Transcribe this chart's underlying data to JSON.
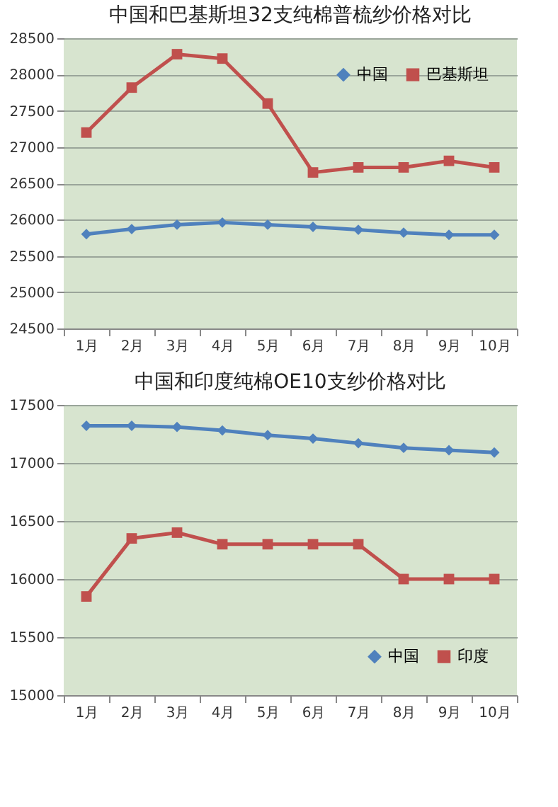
{
  "chart_data": [
    {
      "type": "line",
      "title": "中国和巴基斯坦32支纯棉普梳纱价格对比",
      "categories": [
        "1月",
        "2月",
        "3月",
        "4月",
        "5月",
        "6月",
        "7月",
        "8月",
        "9月",
        "10月"
      ],
      "ylim": [
        24500,
        28500
      ],
      "yticks": [
        24500,
        25000,
        25500,
        26000,
        26500,
        27000,
        27500,
        28000,
        28500
      ],
      "grid": "y",
      "legend": "top right",
      "series": [
        {
          "name": "中国",
          "color": "#4f81bd",
          "marker": "diamond",
          "values": [
            25800,
            25870,
            25930,
            25960,
            25930,
            25900,
            25860,
            25820,
            25790,
            25790
          ]
        },
        {
          "name": "巴基斯坦",
          "color": "#c0504d",
          "marker": "square",
          "values": [
            27200,
            27820,
            28280,
            28220,
            27600,
            26650,
            26720,
            26720,
            26810,
            26720
          ]
        }
      ]
    },
    {
      "type": "line",
      "title": "中国和印度纯棉OE10支纱价格对比",
      "categories": [
        "1月",
        "2月",
        "3月",
        "4月",
        "5月",
        "6月",
        "7月",
        "8月",
        "9月",
        "10月"
      ],
      "ylim": [
        15000,
        17500
      ],
      "yticks": [
        15000,
        15500,
        16000,
        16500,
        17000,
        17500
      ],
      "grid": "y",
      "legend": "bottom right",
      "series": [
        {
          "name": "中国",
          "color": "#4f81bd",
          "marker": "diamond",
          "values": [
            17320,
            17320,
            17310,
            17280,
            17240,
            17210,
            17170,
            17130,
            17110,
            17090
          ]
        },
        {
          "name": "印度",
          "color": "#c0504d",
          "marker": "square",
          "values": [
            15850,
            16350,
            16400,
            16300,
            16300,
            16300,
            16300,
            16000,
            16000,
            16000
          ]
        }
      ]
    }
  ]
}
